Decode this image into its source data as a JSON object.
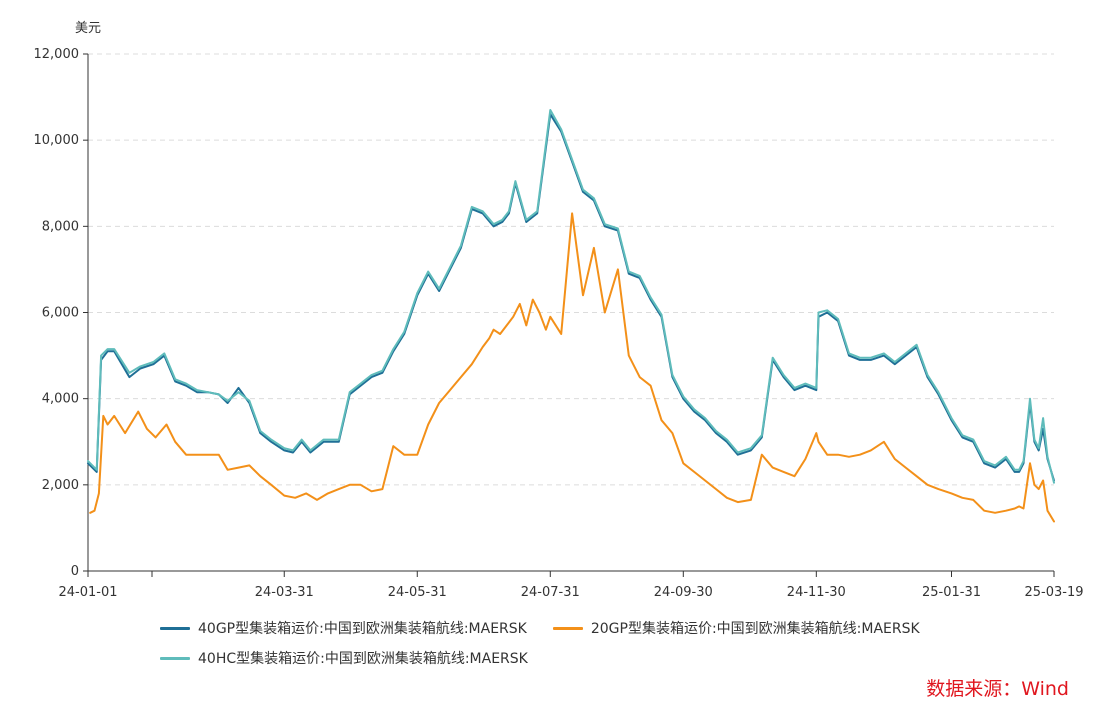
{
  "source_label": "数据来源：Wind",
  "colors": {
    "s40gp": "#1f6f96",
    "s20gp": "#f39019",
    "s40hc": "#5fbcbb"
  },
  "chart_data": {
    "type": "line",
    "title": "",
    "ylabel": "美元",
    "xlabel": "",
    "ylim": [
      0,
      12000
    ],
    "yticks": [
      0,
      2000,
      4000,
      6000,
      8000,
      10000,
      12000
    ],
    "ytick_labels": [
      "0",
      "2,000",
      "4,000",
      "6,000",
      "8,000",
      "10,000",
      "12,000"
    ],
    "xlim": [
      "2024-01-01",
      "2025-03-19"
    ],
    "xticks": [
      "2024-01-01",
      "2024-03-31",
      "2024-05-31",
      "2024-07-31",
      "2024-09-30",
      "2024-11-30",
      "2025-01-31",
      "2025-03-19"
    ],
    "xtick_labels": [
      "24-01-01",
      "24-03-31",
      "24-05-31",
      "24-07-31",
      "24-09-30",
      "24-11-30",
      "25-01-31",
      "25-03-19"
    ],
    "grid": "horizontal-dashed",
    "legend_position": "bottom",
    "series": [
      {
        "name": "40GP型集装箱运价:中国到欧洲集装箱航线:MAERSK",
        "color": "#1f6f96",
        "x": [
          "2024-01-01",
          "2024-01-05",
          "2024-01-07",
          "2024-01-10",
          "2024-01-13",
          "2024-01-20",
          "2024-01-25",
          "2024-01-31",
          "2024-02-05",
          "2024-02-10",
          "2024-02-15",
          "2024-02-20",
          "2024-02-25",
          "2024-03-01",
          "2024-03-05",
          "2024-03-10",
          "2024-03-15",
          "2024-03-20",
          "2024-03-25",
          "2024-03-31",
          "2024-04-04",
          "2024-04-08",
          "2024-04-12",
          "2024-04-18",
          "2024-04-25",
          "2024-04-30",
          "2024-05-05",
          "2024-05-10",
          "2024-05-15",
          "2024-05-20",
          "2024-05-25",
          "2024-05-31",
          "2024-06-05",
          "2024-06-10",
          "2024-06-15",
          "2024-06-20",
          "2024-06-25",
          "2024-06-30",
          "2024-07-05",
          "2024-07-09",
          "2024-07-12",
          "2024-07-15",
          "2024-07-20",
          "2024-07-25",
          "2024-07-31",
          "2024-08-05",
          "2024-08-10",
          "2024-08-15",
          "2024-08-20",
          "2024-08-25",
          "2024-08-31",
          "2024-09-05",
          "2024-09-10",
          "2024-09-15",
          "2024-09-20",
          "2024-09-25",
          "2024-09-30",
          "2024-10-05",
          "2024-10-10",
          "2024-10-15",
          "2024-10-20",
          "2024-10-25",
          "2024-10-31",
          "2024-11-05",
          "2024-11-10",
          "2024-11-15",
          "2024-11-20",
          "2024-11-25",
          "2024-11-30",
          "2024-12-01",
          "2024-12-05",
          "2024-12-10",
          "2024-12-15",
          "2024-12-20",
          "2024-12-25",
          "2024-12-31",
          "2025-01-05",
          "2025-01-10",
          "2025-01-15",
          "2025-01-20",
          "2025-01-25",
          "2025-01-31",
          "2025-02-05",
          "2025-02-10",
          "2025-02-15",
          "2025-02-20",
          "2025-02-25",
          "2025-03-01",
          "2025-03-03",
          "2025-03-05",
          "2025-03-08",
          "2025-03-10",
          "2025-03-12",
          "2025-03-14",
          "2025-03-16",
          "2025-03-19"
        ],
        "y": [
          2500,
          2300,
          4900,
          5100,
          5100,
          4500,
          4700,
          4800,
          5000,
          4400,
          4300,
          4150,
          4150,
          4100,
          3900,
          4250,
          3900,
          3200,
          3000,
          2800,
          2750,
          3000,
          2750,
          3000,
          3000,
          4100,
          4300,
          4500,
          4600,
          5100,
          5500,
          6400,
          6900,
          6500,
          7000,
          7500,
          8400,
          8300,
          8000,
          8100,
          8300,
          9000,
          8100,
          8300,
          10600,
          10200,
          9500,
          8800,
          8600,
          8000,
          7900,
          6900,
          6800,
          6300,
          5900,
          4500,
          4000,
          3700,
          3500,
          3200,
          3000,
          2700,
          2800,
          3100,
          4900,
          4500,
          4200,
          4300,
          4200,
          5900,
          6000,
          5800,
          5000,
          4900,
          4900,
          5000,
          4800,
          5000,
          5200,
          4500,
          4100,
          3500,
          3100,
          3000,
          2500,
          2400,
          2600,
          2300,
          2300,
          2500,
          3900,
          3000,
          2800,
          3300,
          2600,
          2100
        ]
      },
      {
        "name": "20GP型集装箱运价:中国到欧洲集装箱航线:MAERSK",
        "color": "#f39019",
        "x": [
          "2024-01-02",
          "2024-01-04",
          "2024-01-06",
          "2024-01-08",
          "2024-01-10",
          "2024-01-13",
          "2024-01-18",
          "2024-01-24",
          "2024-01-28",
          "2024-02-01",
          "2024-02-06",
          "2024-02-10",
          "2024-02-15",
          "2024-02-20",
          "2024-02-28",
          "2024-03-01",
          "2024-03-05",
          "2024-03-10",
          "2024-03-15",
          "2024-03-20",
          "2024-03-25",
          "2024-03-31",
          "2024-04-05",
          "2024-04-10",
          "2024-04-15",
          "2024-04-20",
          "2024-04-25",
          "2024-04-30",
          "2024-05-05",
          "2024-05-10",
          "2024-05-15",
          "2024-05-20",
          "2024-05-25",
          "2024-05-31",
          "2024-06-05",
          "2024-06-10",
          "2024-06-15",
          "2024-06-20",
          "2024-06-25",
          "2024-06-30",
          "2024-07-03",
          "2024-07-05",
          "2024-07-08",
          "2024-07-11",
          "2024-07-14",
          "2024-07-17",
          "2024-07-20",
          "2024-07-23",
          "2024-07-26",
          "2024-07-29",
          "2024-07-31",
          "2024-08-05",
          "2024-08-10",
          "2024-08-15",
          "2024-08-20",
          "2024-08-25",
          "2024-08-31",
          "2024-09-05",
          "2024-09-10",
          "2024-09-15",
          "2024-09-20",
          "2024-09-25",
          "2024-09-30",
          "2024-10-05",
          "2024-10-10",
          "2024-10-15",
          "2024-10-20",
          "2024-10-25",
          "2024-10-31",
          "2024-11-05",
          "2024-11-10",
          "2024-11-15",
          "2024-11-20",
          "2024-11-25",
          "2024-11-30",
          "2024-12-01",
          "2024-12-05",
          "2024-12-10",
          "2024-12-15",
          "2024-12-20",
          "2024-12-25",
          "2024-12-31",
          "2025-01-05",
          "2025-01-10",
          "2025-01-15",
          "2025-01-20",
          "2025-01-25",
          "2025-01-31",
          "2025-02-05",
          "2025-02-10",
          "2025-02-15",
          "2025-02-20",
          "2025-02-25",
          "2025-03-01",
          "2025-03-03",
          "2025-03-05",
          "2025-03-08",
          "2025-03-10",
          "2025-03-12",
          "2025-03-14",
          "2025-03-16",
          "2025-03-19"
        ],
        "y": [
          1350,
          1400,
          1800,
          3600,
          3400,
          3600,
          3200,
          3700,
          3300,
          3100,
          3400,
          3000,
          2700,
          2700,
          2700,
          2700,
          2350,
          2400,
          2450,
          2200,
          2000,
          1750,
          1700,
          1800,
          1650,
          1800,
          1900,
          2000,
          2000,
          1850,
          1900,
          2900,
          2700,
          2700,
          3400,
          3900,
          4200,
          4500,
          4800,
          5200,
          5400,
          5600,
          5500,
          5700,
          5900,
          6200,
          5700,
          6300,
          6000,
          5600,
          5900,
          5500,
          8300,
          6400,
          7500,
          6000,
          7000,
          5000,
          4500,
          4300,
          3500,
          3200,
          2500,
          2300,
          2100,
          1900,
          1700,
          1600,
          1650,
          2700,
          2400,
          2300,
          2200,
          2600,
          3200,
          3000,
          2700,
          2700,
          2650,
          2700,
          2800,
          3000,
          2600,
          2400,
          2200,
          2000,
          1900,
          1800,
          1700,
          1650,
          1400,
          1350,
          1400,
          1450,
          1500,
          1450,
          2500,
          2000,
          1900,
          2100,
          1400,
          1150
        ]
      },
      {
        "name": "40HC型集装箱运价:中国到欧洲集装箱航线:MAERSK",
        "color": "#5fbcbb",
        "x": [
          "2024-01-01",
          "2024-01-05",
          "2024-01-07",
          "2024-01-10",
          "2024-01-13",
          "2024-01-20",
          "2024-01-25",
          "2024-01-31",
          "2024-02-05",
          "2024-02-10",
          "2024-02-15",
          "2024-02-20",
          "2024-02-25",
          "2024-03-01",
          "2024-03-05",
          "2024-03-10",
          "2024-03-15",
          "2024-03-20",
          "2024-03-25",
          "2024-03-31",
          "2024-04-04",
          "2024-04-08",
          "2024-04-12",
          "2024-04-18",
          "2024-04-25",
          "2024-04-30",
          "2024-05-05",
          "2024-05-10",
          "2024-05-15",
          "2024-05-20",
          "2024-05-25",
          "2024-05-31",
          "2024-06-05",
          "2024-06-10",
          "2024-06-15",
          "2024-06-20",
          "2024-06-25",
          "2024-06-30",
          "2024-07-05",
          "2024-07-09",
          "2024-07-12",
          "2024-07-15",
          "2024-07-20",
          "2024-07-25",
          "2024-07-31",
          "2024-08-05",
          "2024-08-10",
          "2024-08-15",
          "2024-08-20",
          "2024-08-25",
          "2024-08-31",
          "2024-09-05",
          "2024-09-10",
          "2024-09-15",
          "2024-09-20",
          "2024-09-25",
          "2024-09-30",
          "2024-10-05",
          "2024-10-10",
          "2024-10-15",
          "2024-10-20",
          "2024-10-25",
          "2024-10-31",
          "2024-11-05",
          "2024-11-10",
          "2024-11-15",
          "2024-11-20",
          "2024-11-25",
          "2024-11-30",
          "2024-12-01",
          "2024-12-05",
          "2024-12-10",
          "2024-12-15",
          "2024-12-20",
          "2024-12-25",
          "2024-12-31",
          "2025-01-05",
          "2025-01-10",
          "2025-01-15",
          "2025-01-20",
          "2025-01-25",
          "2025-01-31",
          "2025-02-05",
          "2025-02-10",
          "2025-02-15",
          "2025-02-20",
          "2025-02-25",
          "2025-03-01",
          "2025-03-03",
          "2025-03-05",
          "2025-03-08",
          "2025-03-10",
          "2025-03-12",
          "2025-03-14",
          "2025-03-16",
          "2025-03-19"
        ],
        "y": [
          2550,
          2350,
          5000,
          5150,
          5150,
          4600,
          4750,
          4850,
          5050,
          4450,
          4350,
          4200,
          4150,
          4100,
          3950,
          4150,
          3950,
          3250,
          3050,
          2850,
          2800,
          3050,
          2800,
          3050,
          3050,
          4150,
          4350,
          4550,
          4650,
          5150,
          5550,
          6450,
          6950,
          6550,
          7050,
          7550,
          8450,
          8350,
          8050,
          8150,
          8350,
          9050,
          8150,
          8350,
          10700,
          10250,
          9550,
          8850,
          8650,
          8050,
          7950,
          6950,
          6850,
          6350,
          5950,
          4550,
          4050,
          3750,
          3550,
          3250,
          3050,
          2750,
          2850,
          3150,
          4950,
          4550,
          4250,
          4350,
          4250,
          6000,
          6050,
          5850,
          5050,
          4950,
          4950,
          5050,
          4850,
          5050,
          5250,
          4550,
          4150,
          3550,
          3150,
          3050,
          2550,
          2450,
          2650,
          2350,
          2350,
          2550,
          4000,
          3050,
          2850,
          3550,
          2650,
          2050
        ]
      }
    ]
  }
}
